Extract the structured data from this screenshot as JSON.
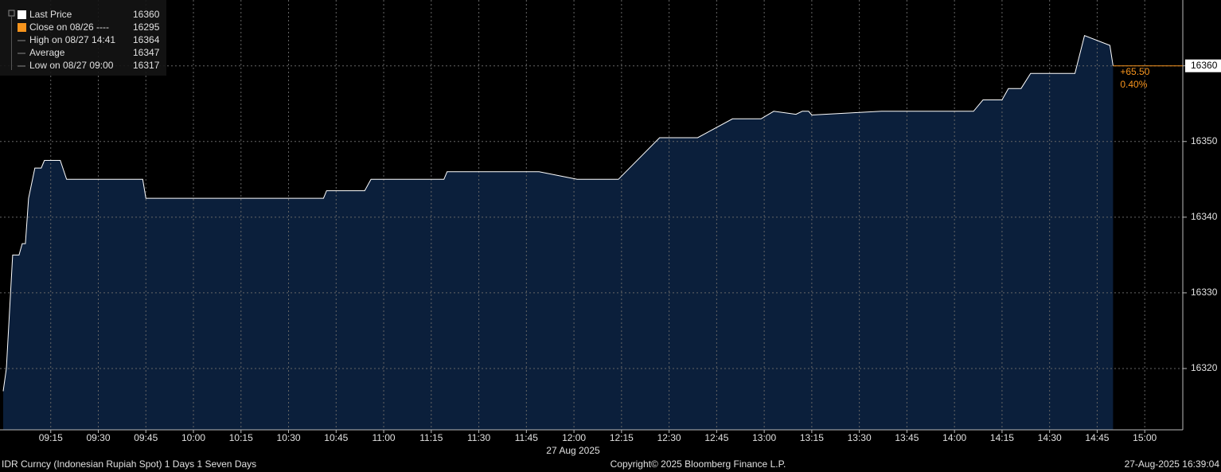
{
  "chart_data": {
    "type": "area",
    "subtitle": "27 Aug 2025",
    "series": [
      {
        "name": "Last Price",
        "color": "#ffffff",
        "fill": "#0b1f3b",
        "x": [
          "09:00",
          "09:01",
          "09:03",
          "09:05",
          "09:06",
          "09:07",
          "09:08",
          "09:10",
          "09:12",
          "09:13",
          "09:18",
          "09:20",
          "09:44",
          "09:45",
          "10:41",
          "10:42",
          "10:54",
          "10:56",
          "11:19",
          "11:20",
          "11:49",
          "12:01",
          "12:14",
          "12:27",
          "12:39",
          "12:50",
          "12:59",
          "13:03",
          "13:10",
          "13:12",
          "13:14",
          "13:15",
          "13:37",
          "14:06",
          "14:09",
          "14:15",
          "14:17",
          "14:21",
          "14:24",
          "14:38",
          "14:41",
          "14:49",
          "14:50"
        ],
        "values": [
          16317,
          16320,
          16335,
          16335,
          16336.5,
          16336.5,
          16342.5,
          16346.5,
          16346.5,
          16347.5,
          16347.5,
          16345,
          16345,
          16342.5,
          16342.5,
          16343.5,
          16343.5,
          16345,
          16345,
          16346,
          16346,
          16345,
          16345,
          16350.5,
          16350.5,
          16353,
          16353,
          16354,
          16353.6,
          16354,
          16354,
          16353.5,
          16354,
          16354,
          16355.5,
          16355.5,
          16357,
          16357,
          16359,
          16359,
          16364,
          16362.7,
          16360
        ]
      }
    ],
    "legend": [
      {
        "label": "Last Price",
        "value": 16360,
        "color": "#ffffff"
      },
      {
        "label": "Close on 08/26 ----",
        "value": 16295,
        "color": "#f7941d"
      },
      {
        "label": "High on 08/27 14:41",
        "value": 16364
      },
      {
        "label": "Average",
        "value": 16347
      },
      {
        "label": "Low on 08/27 09:00",
        "value": 16317
      }
    ],
    "annotations": [
      "+65.50",
      "0.40%"
    ],
    "last_line_color": "#f7941d",
    "xlim": [
      "08:59",
      "15:12"
    ],
    "xticks": [
      "09:15",
      "09:30",
      "09:45",
      "10:00",
      "10:15",
      "10:30",
      "10:45",
      "11:00",
      "11:15",
      "11:30",
      "11:45",
      "12:00",
      "12:15",
      "12:30",
      "12:45",
      "13:00",
      "13:15",
      "13:30",
      "13:45",
      "14:00",
      "14:15",
      "14:30",
      "14:45",
      "15:00"
    ],
    "ylim": [
      16311.9,
      16368.7
    ],
    "yticks": [
      16320,
      16330,
      16340,
      16350,
      16360
    ],
    "grid": true,
    "footer": [
      "IDR Curncy (Indonesian Rupiah Spot) 1 Days 1 Seven Days",
      "Copyright© 2025 Bloomberg Finance L.P.",
      "27-Aug-2025 16:39:04"
    ]
  }
}
